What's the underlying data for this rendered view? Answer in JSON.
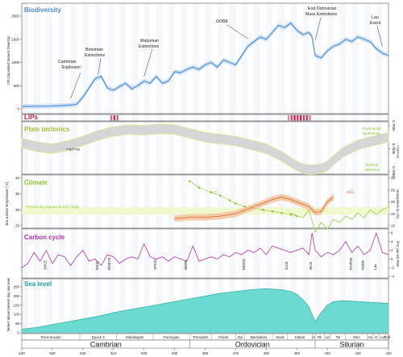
{
  "panels": {
    "biodiversity": {
      "title": "Biodiversity",
      "ylabel": "CR Calculated Generic Diversity",
      "annotations": [
        "Cambrian",
        "‘Explosion’",
        "Botomian",
        "Extinctions",
        "Marjuman",
        "Extinctions",
        "GOBE",
        "End Ordovician",
        "Mass Extinctions",
        "Lau",
        "Event"
      ]
    },
    "lips": {
      "title": "LIPs"
    },
    "tectonics": {
      "title": "Plate tectonics",
      "ylabel_right": "⁸⁷Sr/⁸⁶Sr",
      "series_label": "⁸⁷Sr/⁸⁶Sr",
      "notes": [
        "Continental",
        "weathering",
        "Seafloor",
        "alteration"
      ]
    },
    "climate": {
      "title": "Climate",
      "ylabel": "Sea surface temperature (°C)",
      "ylabel_right": "Atmospheric O₂ (%)",
      "sst_label": "Present-day equatorial SST range",
      "o2_label": "pO₂",
      "temp_label": "C°"
    },
    "carbon": {
      "title": "Carbon cycle",
      "ylabel_right": "δ¹³C per-mil PDB",
      "events": [
        "SHCE",
        "MICE",
        "ROECE",
        "SPICE",
        "HERB",
        "MDICE",
        "GICE",
        "HICE",
        "Ireviken",
        "Mulde",
        "Lau"
      ]
    },
    "sealevel": {
      "title": "Sea level",
      "ylabel": "Meters above present-day sea level"
    }
  },
  "timescale": {
    "series": [
      "Terreneuvian",
      "Epoch 2",
      "Miaolingian",
      "Furongian",
      "Tremadoc",
      "Floian",
      "Dp",
      "Darriwilian",
      "Sand",
      "Katian",
      "H",
      "Rh",
      "Ae",
      "Tel",
      "Shel",
      "Ho",
      "G",
      "Lu",
      "Prid"
    ],
    "periods": [
      "Cambrian",
      "Ordovician",
      "Silurian"
    ],
    "ticks": [
      "540",
      "530",
      "520",
      "510",
      "500",
      "490",
      "480",
      "470",
      "460",
      "450",
      "440",
      "430",
      "420"
    ]
  },
  "chart_data": [
    {
      "type": "line",
      "title": "Biodiversity",
      "ylabel": "CR Calculated Generic Diversity",
      "xlabel": "",
      "xlim": [
        540,
        420
      ],
      "ylim": [
        0,
        2000
      ],
      "yticks": [
        "0",
        "500",
        "1000",
        "1500",
        "2000"
      ],
      "x": [
        540,
        535,
        530,
        527,
        524,
        522,
        520,
        518,
        516,
        514,
        512,
        510,
        508,
        506,
        504,
        502,
        500,
        498,
        496,
        494,
        492,
        490,
        488,
        486,
        484,
        482,
        480,
        478,
        476,
        474,
        472,
        470,
        468,
        466,
        464,
        462,
        460,
        458,
        456,
        454,
        452,
        450,
        448,
        446,
        445,
        444,
        442,
        440,
        438,
        436,
        434,
        432,
        430,
        428,
        426,
        424,
        422,
        420
      ],
      "series": [
        {
          "name": "",
          "values": [
            50,
            55,
            60,
            70,
            80,
            100,
            250,
            450,
            650,
            700,
            450,
            400,
            480,
            550,
            430,
            500,
            600,
            550,
            700,
            550,
            600,
            800,
            780,
            850,
            900,
            850,
            950,
            1000,
            900,
            1050,
            1000,
            950,
            1150,
            1350,
            1450,
            1550,
            1500,
            1650,
            1800,
            1750,
            1850,
            1700,
            1600,
            1650,
            1550,
            1150,
            1100,
            1250,
            1350,
            1400,
            1500,
            1450,
            1550,
            1500,
            1450,
            1300,
            1200,
            1150
          ]
        }
      ]
    },
    {
      "type": "heatmap",
      "title": "LIPs",
      "x": [
        511,
        510,
        509,
        453,
        452,
        451,
        450,
        449,
        448,
        447,
        446
      ],
      "values": [
        0.6,
        0.9,
        0.7,
        0.5,
        0.8,
        1.0,
        0.9,
        1.0,
        0.8,
        0.9,
        0.6
      ]
    },
    {
      "type": "area",
      "title": "Plate tectonics",
      "ylabel_right": "⁸⁷Sr/⁸⁶Sr",
      "ylim": [
        0.708,
        0.7092
      ],
      "yticks": [
        "0.7080",
        "0.7086",
        "0.7092"
      ],
      "x": [
        540,
        535,
        530,
        525,
        520,
        515,
        510,
        505,
        500,
        495,
        490,
        485,
        480,
        475,
        470,
        465,
        460,
        455,
        452,
        450,
        448,
        446,
        444,
        442,
        440,
        438,
        435,
        430,
        425,
        420
      ],
      "series": [
        {
          "name": "",
          "values": [
            0.70875,
            0.70865,
            0.7086,
            0.70868,
            0.7088,
            0.70895,
            0.70905,
            0.7091,
            0.70908,
            0.70912,
            0.7091,
            0.709,
            0.7089,
            0.70885,
            0.7088,
            0.7087,
            0.7086,
            0.7084,
            0.70825,
            0.70815,
            0.70808,
            0.70805,
            0.70806,
            0.70808,
            0.70815,
            0.7083,
            0.7085,
            0.7087,
            0.7088,
            0.7089
          ]
        }
      ]
    },
    {
      "type": "line",
      "title": "Climate",
      "ylabel": "Sea surface temperature (°C)",
      "ylabel_right": "Atmospheric O₂ (%)",
      "ylim": [
        25,
        40
      ],
      "yticks": [
        "25",
        "30",
        "35",
        "40"
      ],
      "ylim_right": [
        10,
        30
      ],
      "yticks_right": [
        "10",
        "15",
        "20",
        "25",
        "30"
      ],
      "series": [
        {
          "name": "C°",
          "x": [
            485,
            482,
            478,
            475,
            472,
            470,
            467,
            464,
            461,
            458,
            455,
            452,
            450
          ],
          "values": [
            39,
            37,
            35.5,
            34.5,
            33,
            32,
            31,
            30.5,
            30,
            29.5,
            29,
            28.5,
            28
          ]
        },
        {
          "name": "pO₂",
          "x": [
            490,
            485,
            480,
            475,
            470,
            466,
            462,
            458,
            455,
            452,
            449,
            446,
            444,
            442,
            440,
            438
          ],
          "values": [
            13,
            13.5,
            13.5,
            14,
            15,
            17,
            19,
            21,
            22,
            21,
            19.5,
            18,
            15.5,
            16,
            20,
            22
          ]
        },
        {
          "name": "",
          "x": [
            452,
            448,
            446,
            444,
            442,
            440,
            438,
            436,
            434,
            432,
            430,
            428,
            426,
            424,
            422,
            420
          ],
          "values": [
            29,
            27.5,
            30,
            23,
            26,
            24,
            27,
            26,
            28,
            27,
            29,
            27.5,
            30,
            28.5,
            30,
            31
          ]
        }
      ]
    },
    {
      "type": "line",
      "title": "Carbon cycle",
      "ylabel_right": "δ¹³C per-mil PDB",
      "ylim": [
        -4,
        6
      ],
      "yticks": [
        "-4",
        "-2",
        "0",
        "2",
        "4",
        "6"
      ],
      "x": [
        540,
        538,
        536,
        534,
        532,
        530,
        528,
        526,
        524,
        522,
        520,
        518,
        516,
        514,
        512,
        510,
        508,
        506,
        504,
        502,
        500,
        498,
        496,
        494,
        492,
        490,
        488,
        486,
        484,
        482,
        480,
        478,
        476,
        474,
        472,
        470,
        468,
        466,
        464,
        462,
        460,
        458,
        456,
        454,
        452,
        450,
        448,
        446,
        445,
        444,
        442,
        440,
        438,
        436,
        434,
        432,
        430,
        428,
        426,
        424,
        422,
        420
      ],
      "series": [
        {
          "name": "",
          "values": [
            -2,
            -1,
            1.5,
            -0.5,
            2,
            -1,
            1,
            0.5,
            -1.5,
            0.5,
            2,
            -0.5,
            0,
            -1.5,
            1,
            0.5,
            -1,
            0,
            0.5,
            0,
            3.5,
            0.5,
            0,
            0.5,
            -0.5,
            0.5,
            0,
            -0.5,
            3,
            -0.5,
            0,
            0.5,
            0,
            1,
            0.5,
            1.5,
            1,
            2,
            1.5,
            2.5,
            1,
            3,
            2.5,
            2,
            1.5,
            2,
            2.5,
            1,
            6,
            2,
            0.5,
            1.5,
            1,
            2,
            4,
            1.5,
            3,
            1,
            2,
            6,
            1.5,
            1
          ]
        }
      ]
    },
    {
      "type": "area",
      "title": "Sea level",
      "ylabel": "Meters above present-day sea level",
      "ylim": [
        0,
        250
      ],
      "yticks": [
        "0",
        "50",
        "100",
        "150",
        "200",
        "250"
      ],
      "x": [
        540,
        535,
        530,
        525,
        520,
        515,
        510,
        505,
        500,
        495,
        490,
        485,
        480,
        475,
        470,
        465,
        460,
        455,
        452,
        450,
        448,
        446,
        444,
        442,
        440,
        438,
        435,
        430,
        425,
        420
      ],
      "series": [
        {
          "name": "",
          "values": [
            20,
            30,
            45,
            60,
            75,
            90,
            110,
            125,
            140,
            155,
            170,
            185,
            200,
            215,
            225,
            235,
            240,
            235,
            225,
            210,
            180,
            140,
            60,
            110,
            150,
            170,
            175,
            170,
            165,
            160
          ]
        }
      ]
    }
  ]
}
